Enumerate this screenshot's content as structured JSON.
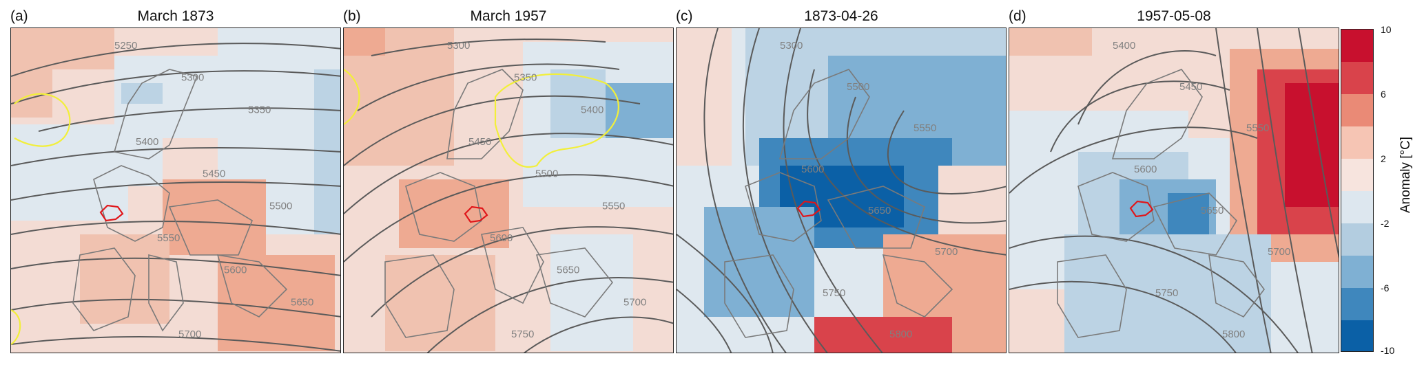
{
  "panels": [
    {
      "letter": "(a)",
      "title": "March 1873",
      "contour_labels": [
        "5250",
        "5300",
        "5350",
        "5400",
        "5450",
        "5500",
        "5550",
        "5600",
        "5650",
        "5700"
      ]
    },
    {
      "letter": "(b)",
      "title": "March 1957",
      "contour_labels": [
        "5300",
        "5350",
        "5400",
        "5450",
        "5500",
        "5550",
        "5600",
        "5650",
        "5700",
        "5750"
      ]
    },
    {
      "letter": "(c)",
      "title": "1873-04-26",
      "contour_labels": [
        "5300",
        "5500",
        "5550",
        "5600",
        "5650",
        "5700",
        "5750",
        "5800"
      ]
    },
    {
      "letter": "(d)",
      "title": "1957-05-08",
      "contour_labels": [
        "5400",
        "5450",
        "5550",
        "5600",
        "5650",
        "5700",
        "5750",
        "5800"
      ]
    }
  ],
  "colorbar": {
    "ticks": [
      "10",
      "6",
      "2",
      "-2",
      "-6",
      "-10"
    ],
    "label": "Anomaly [°C]",
    "colors": [
      "#c8102e",
      "#d9434b",
      "#ea8a76",
      "#f6c5b4",
      "#f7e4de",
      "#dde7ef",
      "#b3cde0",
      "#7fb0d3",
      "#3f87bd",
      "#0b60a6"
    ]
  },
  "colors": {
    "switzerland_outline": "#e0161a",
    "highlight_contour": "#f2ef3a",
    "contour_line": "#555555",
    "border_line": "#7a7a7a"
  }
}
